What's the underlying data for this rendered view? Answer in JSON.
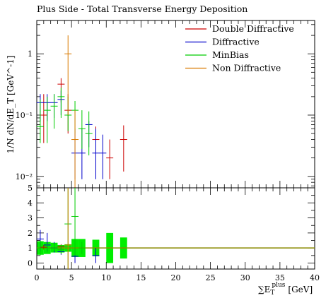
{
  "chart_data": {
    "type": "scatter",
    "title": "Plus Side - Total Transverse Energy Deposition",
    "xlabel_main": "∑E",
    "xlabel_sub": "T",
    "xlabel_sup": "plus",
    "xlabel_unit": "[GeV]",
    "ylabel": "1/N dN/dE_T [GeV^-1]",
    "xlim": [
      0,
      40
    ],
    "ylim_main": [
      0.0065,
      3.5
    ],
    "ylog_main": true,
    "ylim_ratio": [
      -0.4,
      5
    ],
    "x_ticks": [
      "0",
      "5",
      "10",
      "15",
      "20",
      "25",
      "30",
      "35",
      "40"
    ],
    "x_tick_values": [
      0,
      5,
      10,
      15,
      20,
      25,
      30,
      35,
      40
    ],
    "y_ticks_main": [
      "1",
      "10⁻¹",
      "10⁻²"
    ],
    "y_tick_values_main": [
      1,
      0.1,
      0.01
    ],
    "y_ticks_ratio": [
      "0",
      "1",
      "2",
      "3",
      "4",
      "5"
    ],
    "y_tick_values_ratio": [
      0,
      1,
      2,
      3,
      4,
      5
    ],
    "legend_position": "top-right",
    "series": [
      {
        "name": "Double Diffractive",
        "color": "#cc0000",
        "points": [
          {
            "x": 1.0,
            "y": 0.1,
            "lo": 0.035,
            "hi": 0.22
          },
          {
            "x": 3.5,
            "y": 0.32,
            "lo": 0.16,
            "hi": 0.4
          },
          {
            "x": 4.5,
            "y": 0.12,
            "lo": 0.05,
            "hi": 0.22
          },
          {
            "x": 8.5,
            "y": 0.04,
            "lo": 0.016,
            "hi": 0.065
          },
          {
            "x": 10.5,
            "y": 0.02,
            "lo": 0.009,
            "hi": 0.04
          },
          {
            "x": 12.5,
            "y": 0.04,
            "lo": 0.012,
            "hi": 0.068
          }
        ]
      },
      {
        "name": "Diffractive",
        "color": "#0000cc",
        "points": [
          {
            "x": 0.5,
            "y": 0.16,
            "lo": 0.08,
            "hi": 0.22
          },
          {
            "x": 1.5,
            "y": 0.16,
            "lo": 0.08,
            "hi": 0.22
          },
          {
            "x": 2.5,
            "y": 0.16,
            "lo": 0.09,
            "hi": 0.22
          },
          {
            "x": 3.5,
            "y": 0.18,
            "lo": 0.1,
            "hi": 0.25
          },
          {
            "x": 5.5,
            "y": 0.024,
            "lo": 0.009,
            "hi": 0.06
          },
          {
            "x": 6.5,
            "y": 0.024,
            "lo": 0.009,
            "hi": 0.06
          },
          {
            "x": 7.5,
            "y": 0.07,
            "lo": 0.03,
            "hi": 0.08
          },
          {
            "x": 8.5,
            "y": 0.024,
            "lo": 0.009,
            "hi": 0.06
          },
          {
            "x": 9.5,
            "y": 0.024,
            "lo": 0.009,
            "hi": 0.048
          }
        ]
      },
      {
        "name": "MinBias",
        "color": "#00cc00",
        "points": [
          {
            "x": 0.5,
            "y": 0.065,
            "lo": 0.035,
            "hi": 0.18
          },
          {
            "x": 1.5,
            "y": 0.12,
            "lo": 0.035,
            "hi": 0.2
          },
          {
            "x": 2.5,
            "y": 0.14,
            "lo": 0.06,
            "hi": 0.22
          },
          {
            "x": 3.5,
            "y": 0.2,
            "lo": 0.09,
            "hi": 0.28
          },
          {
            "x": 4.5,
            "y": 0.1,
            "lo": 0.055,
            "hi": 0.2
          },
          {
            "x": 5.5,
            "y": 0.12,
            "lo": 0.05,
            "hi": 0.17
          },
          {
            "x": 6.5,
            "y": 0.06,
            "lo": 0.028,
            "hi": 0.12
          },
          {
            "x": 7.5,
            "y": 0.05,
            "lo": 0.022,
            "hi": 0.115
          }
        ]
      },
      {
        "name": "Non Diffractive",
        "color": "#d97a00",
        "points": [
          {
            "x": 4.5,
            "y": 1.0,
            "lo": 0.1,
            "hi": 2.0
          },
          {
            "x": 5.5,
            "y": 0.04,
            "lo": 0.0065,
            "hi": 0.12
          }
        ]
      }
    ],
    "ratio_band": {
      "color": "#00ee00",
      "bins": [
        {
          "x0": 0,
          "x1": 1,
          "lo": 0.55,
          "hi": 1.45
        },
        {
          "x0": 1,
          "x1": 2,
          "lo": 0.6,
          "hi": 1.4
        },
        {
          "x0": 2,
          "x1": 3,
          "lo": 0.7,
          "hi": 1.35
        },
        {
          "x0": 3,
          "x1": 4,
          "lo": 0.7,
          "hi": 1.2
        },
        {
          "x0": 4,
          "x1": 5,
          "lo": 0.75,
          "hi": 1.25
        },
        {
          "x0": 5,
          "x1": 6,
          "lo": 0.4,
          "hi": 1.6
        },
        {
          "x0": 6,
          "x1": 7,
          "lo": 0.4,
          "hi": 1.6
        },
        {
          "x0": 8,
          "x1": 9,
          "lo": 0.45,
          "hi": 1.55
        },
        {
          "x0": 10,
          "x1": 11,
          "lo": 0.0,
          "hi": 2.0
        },
        {
          "x0": 12,
          "x1": 13,
          "lo": 0.3,
          "hi": 1.7
        }
      ]
    },
    "ratio_series": [
      {
        "name": "Double Diffractive",
        "color": "#cc0000",
        "points": [
          {
            "x": 1.0,
            "y": 1.05,
            "lo": 0.9,
            "hi": 1.2
          },
          {
            "x": 3.5,
            "y": 1.1,
            "lo": 0.95,
            "hi": 1.25
          }
        ]
      },
      {
        "name": "Diffractive",
        "color": "#0000cc",
        "points": [
          {
            "x": 0.5,
            "y": 1.6,
            "lo": 0.8,
            "hi": 2.2
          },
          {
            "x": 1.5,
            "y": 1.2,
            "lo": 0.8,
            "hi": 2.0
          },
          {
            "x": 2.5,
            "y": 1.0,
            "lo": 0.7,
            "hi": 1.4
          },
          {
            "x": 3.5,
            "y": 0.75,
            "lo": 0.55,
            "hi": 1.0
          },
          {
            "x": 5.5,
            "y": 0.45,
            "lo": 0.0,
            "hi": 1.0
          },
          {
            "x": 8.5,
            "y": 0.5,
            "lo": 0.0,
            "hi": 1.0
          }
        ]
      },
      {
        "name": "MinBias",
        "color": "#00cc00",
        "points": [
          {
            "x": 0.5,
            "y": 1.0,
            "lo": 0.5,
            "hi": 1.5
          },
          {
            "x": 1.5,
            "y": 1.0,
            "lo": 0.7,
            "hi": 1.3
          },
          {
            "x": 2.5,
            "y": 1.0,
            "lo": 0.8,
            "hi": 1.3
          },
          {
            "x": 3.5,
            "y": 0.9,
            "lo": 0.6,
            "hi": 1.2
          },
          {
            "x": 4.5,
            "y": 2.6,
            "lo": -0.4,
            "hi": 5.0
          },
          {
            "x": 5.5,
            "y": 3.1,
            "lo": 0.5,
            "hi": 5.0
          },
          {
            "x": 6.5,
            "y": 1.0,
            "lo": 0.6,
            "hi": 1.4
          }
        ]
      },
      {
        "name": "Non Diffractive",
        "color": "#d97a00",
        "points": [
          {
            "x": 4.5,
            "y": 1.2,
            "lo": -0.4,
            "hi": 5.0
          }
        ]
      }
    ],
    "reference_line": {
      "y": 1.0,
      "color": "#8a8a00"
    }
  }
}
